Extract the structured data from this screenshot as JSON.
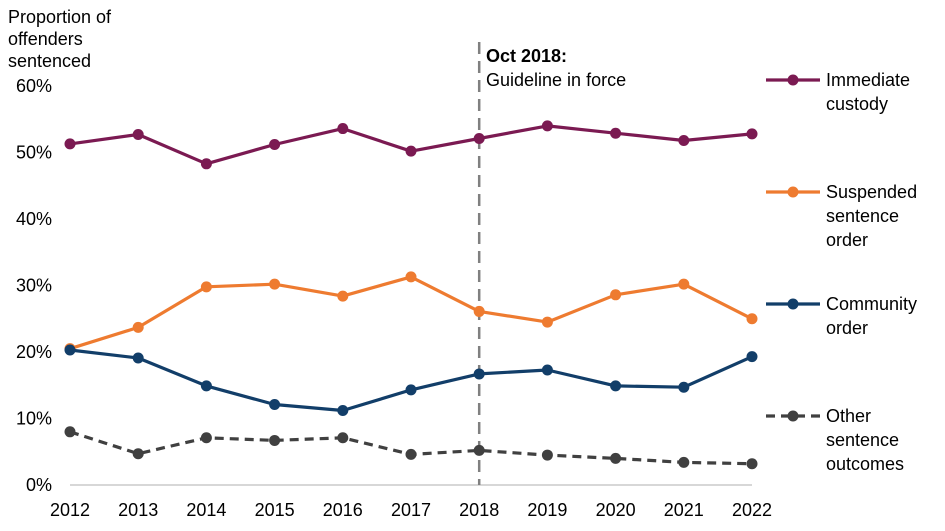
{
  "chart_data": {
    "type": "line",
    "ylabel": "Proportion of offenders sentenced",
    "ylabel_lines": [
      "Proportion of",
      "offenders",
      "sentenced"
    ],
    "ylim": [
      0,
      60
    ],
    "yticks": [
      0,
      10,
      20,
      30,
      40,
      50,
      60
    ],
    "ytick_labels": [
      "0%",
      "10%",
      "20%",
      "30%",
      "40%",
      "50%",
      "60%"
    ],
    "x": [
      "2012",
      "2013",
      "2014",
      "2015",
      "2016",
      "2017",
      "2018",
      "2019",
      "2020",
      "2021",
      "2022"
    ],
    "series": [
      {
        "name": "Immediate custody",
        "name_lines": [
          "Immediate",
          "custody"
        ],
        "color": "#7b1a52",
        "dashed": false,
        "values": [
          51.3,
          52.7,
          48.3,
          51.2,
          53.6,
          50.2,
          52.1,
          54.0,
          52.9,
          51.8,
          52.8
        ]
      },
      {
        "name": "Suspended sentence order",
        "name_lines": [
          "Suspended",
          "sentence",
          "order"
        ],
        "color": "#ee7b30",
        "dashed": false,
        "values": [
          20.5,
          23.7,
          29.8,
          30.2,
          28.4,
          31.3,
          26.1,
          24.5,
          28.6,
          30.2,
          25.0
        ]
      },
      {
        "name": "Community order",
        "name_lines": [
          "Community",
          "order"
        ],
        "color": "#123e69",
        "dashed": false,
        "values": [
          20.3,
          19.1,
          14.9,
          12.1,
          11.2,
          14.3,
          16.7,
          17.3,
          14.9,
          14.7,
          19.3
        ]
      },
      {
        "name": "Other sentence outcomes",
        "name_lines": [
          "Other",
          "sentence",
          "outcomes"
        ],
        "color": "#404040",
        "dashed": true,
        "values": [
          8.0,
          4.7,
          7.1,
          6.7,
          7.1,
          4.6,
          5.2,
          4.5,
          4.0,
          3.4,
          3.2
        ]
      }
    ],
    "annotation": {
      "x": "2018",
      "title": "Oct 2018:",
      "text": "Guideline in force",
      "line_color": "#808080"
    }
  }
}
